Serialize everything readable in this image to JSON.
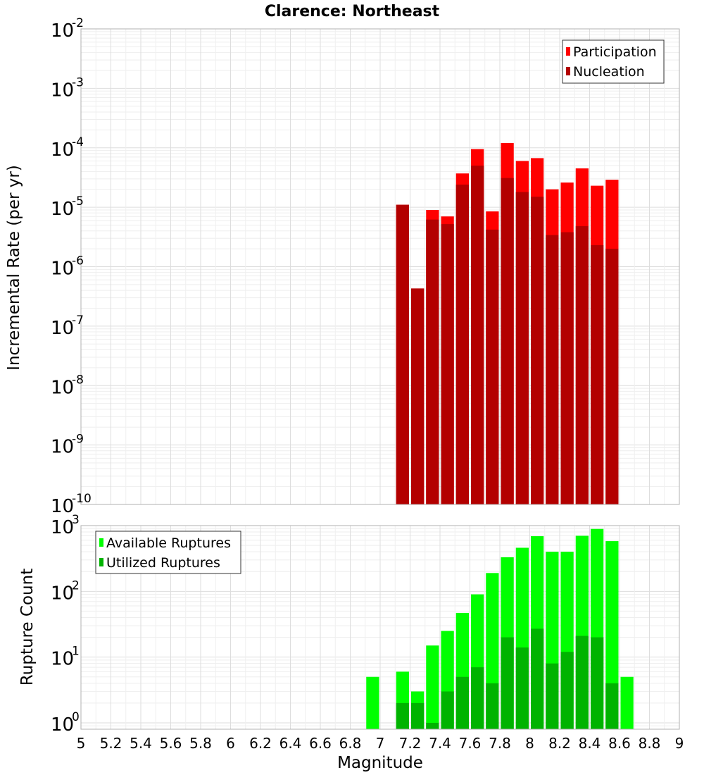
{
  "chart_data": [
    {
      "type": "bar",
      "title": "Clarence: Northeast",
      "xlabel": "",
      "ylabel": "Incremental Rate (per yr)",
      "yscale": "log",
      "xlim": [
        5,
        9
      ],
      "ylim": [
        1e-10,
        0.01
      ],
      "ytick_exponents": [
        "-10",
        "-9",
        "-8",
        "-7",
        "-6",
        "-5",
        "-4",
        "-3",
        "-2"
      ],
      "ytick_base": "10",
      "bin_width": 0.1,
      "grid": true,
      "legend_position": "top-right",
      "colors": {
        "Participation": "#ff0000",
        "Nucleation": "#b30000"
      },
      "x": [
        7.15,
        7.25,
        7.35,
        7.45,
        7.55,
        7.65,
        7.75,
        7.85,
        7.95,
        8.05,
        8.15,
        8.25,
        8.35,
        8.45,
        8.55
      ],
      "series": [
        {
          "name": "Participation",
          "values": [
            1.1e-05,
            4.3e-07,
            9e-06,
            7e-06,
            3.7e-05,
            9.5e-05,
            8.5e-06,
            0.00012,
            6e-05,
            6.7e-05,
            2e-05,
            2.6e-05,
            4.5e-05,
            2.3e-05,
            2.9e-05
          ]
        },
        {
          "name": "Nucleation",
          "values": [
            1.1e-05,
            4.3e-07,
            6.2e-06,
            5.2e-06,
            2.4e-05,
            5e-05,
            4.2e-06,
            3.1e-05,
            1.8e-05,
            1.5e-05,
            3.4e-06,
            3.8e-06,
            4.8e-06,
            2.3e-06,
            2e-06
          ]
        }
      ]
    },
    {
      "type": "bar",
      "title": "",
      "xlabel": "Magnitude",
      "ylabel": "Rupture Count",
      "yscale": "log",
      "xlim": [
        5,
        9
      ],
      "ylim": [
        0.8,
        1000
      ],
      "ytick_exponents": [
        "0",
        "1",
        "2",
        "3"
      ],
      "ytick_base": "10",
      "xtick_labels": [
        "5",
        "5.2",
        "5.4",
        "5.6",
        "5.8",
        "6",
        "6.2",
        "6.4",
        "6.6",
        "6.8",
        "7",
        "7.2",
        "7.4",
        "7.6",
        "7.8",
        "8",
        "8.2",
        "8.4",
        "8.6",
        "8.8",
        "9"
      ],
      "bin_width": 0.1,
      "grid": true,
      "legend_position": "top-left",
      "colors": {
        "Available Ruptures": "#00ff00",
        "Utilized Ruptures": "#00b300"
      },
      "x": [
        6.95,
        7.15,
        7.25,
        7.35,
        7.45,
        7.55,
        7.65,
        7.75,
        7.85,
        7.95,
        8.05,
        8.15,
        8.25,
        8.35,
        8.45,
        8.55,
        8.65
      ],
      "series": [
        {
          "name": "Available Ruptures",
          "values": [
            5,
            6,
            3,
            15,
            25,
            47,
            90,
            190,
            330,
            460,
            690,
            400,
            400,
            700,
            890,
            580,
            5
          ]
        },
        {
          "name": "Utilized Ruptures",
          "values": [
            0,
            2,
            2,
            1,
            3,
            5,
            7,
            4,
            20,
            14,
            27,
            8,
            12,
            21,
            20,
            4,
            0
          ]
        }
      ]
    }
  ]
}
